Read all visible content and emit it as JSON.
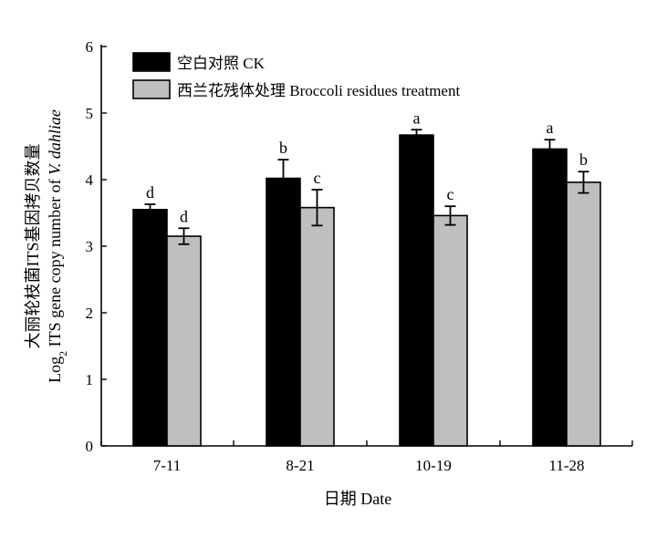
{
  "chart_data": {
    "type": "bar",
    "categories": [
      "7-11",
      "8-21",
      "10-19",
      "11-28"
    ],
    "series": [
      {
        "name": "空白对照 CK",
        "color": "#000000",
        "values": [
          3.55,
          4.02,
          4.67,
          4.46
        ],
        "errors": [
          0.08,
          0.28,
          0.08,
          0.14
        ],
        "letters": [
          "d",
          "b",
          "a",
          "a"
        ]
      },
      {
        "name": "西兰花残体处理 Broccoli residues treatment",
        "color": "#bfbfbf",
        "values": [
          3.15,
          3.58,
          3.46,
          3.96
        ],
        "errors": [
          0.12,
          0.27,
          0.14,
          0.16
        ],
        "letters": [
          "d",
          "c",
          "c",
          "b"
        ]
      }
    ],
    "xlabel": "日期 Date",
    "ylabel_cn": "大丽轮枝菌ITS基因拷贝数量",
    "ylabel_en": {
      "prefix": "Log",
      "subscript": "2",
      "middle": " ITS gene copy number of ",
      "italic": "V. dahliae"
    },
    "ylim": [
      0,
      6
    ],
    "yticks": [
      0,
      1,
      2,
      3,
      4,
      5,
      6
    ],
    "grid": false,
    "legend_position": "top-left"
  }
}
